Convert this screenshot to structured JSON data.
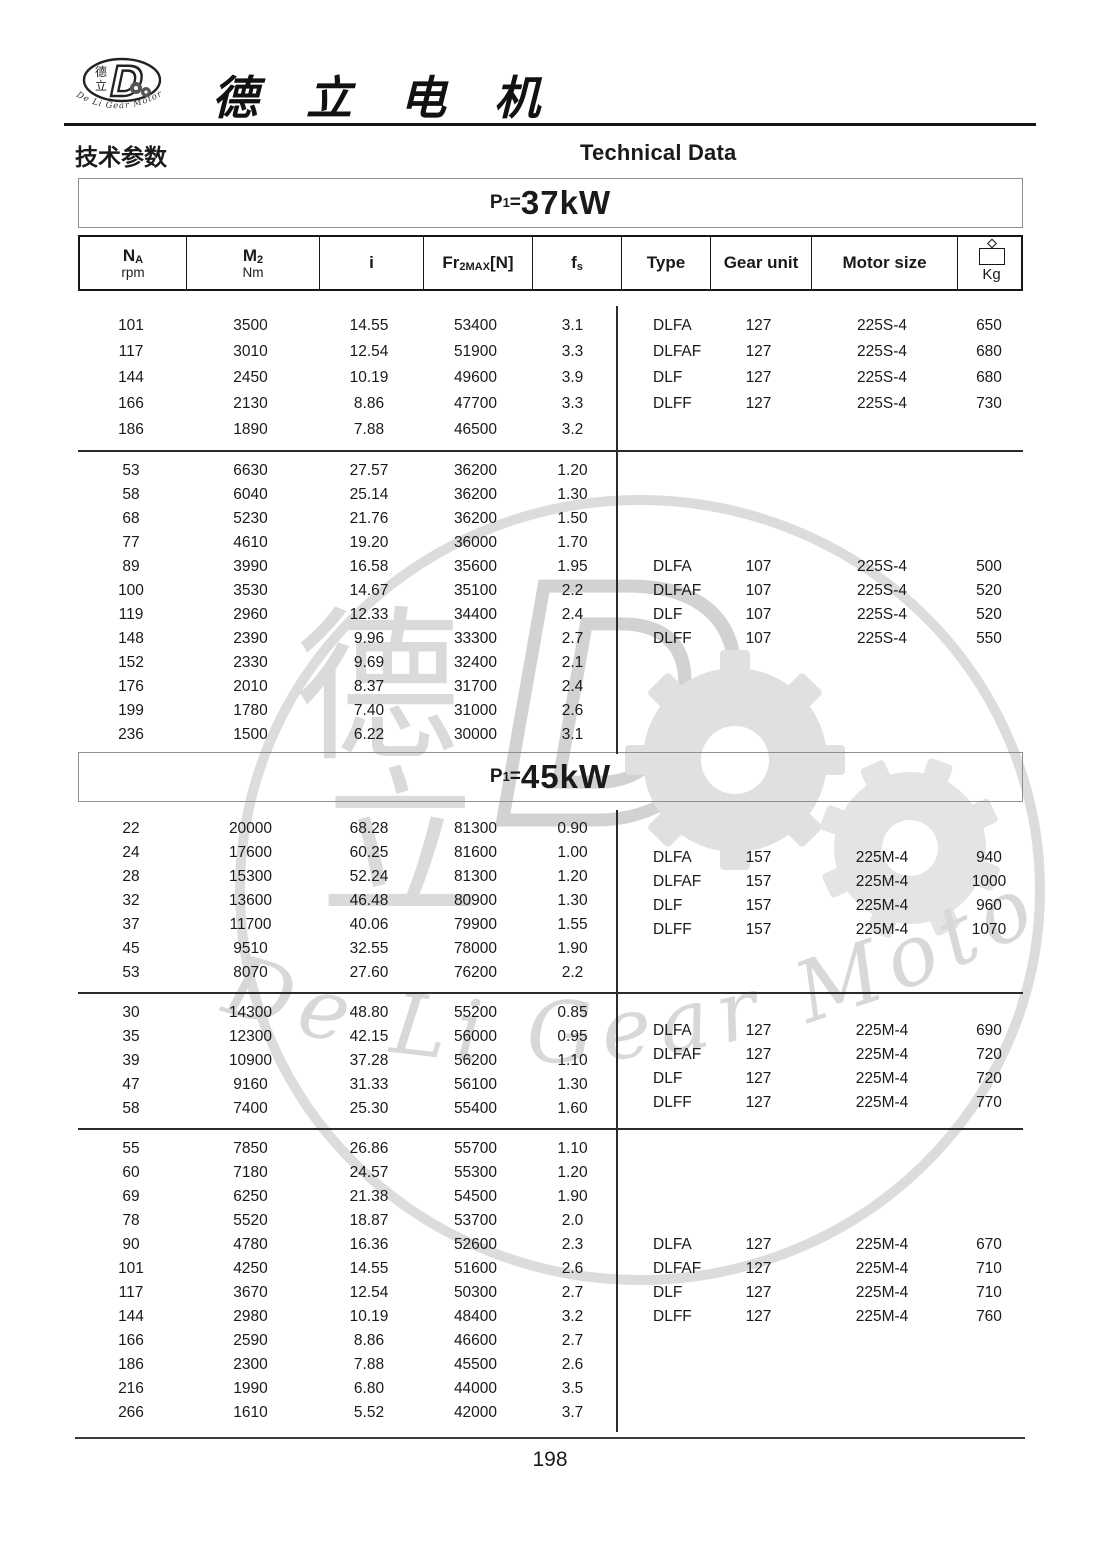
{
  "header": {
    "brand": "德 立 电 机",
    "section_cn": "技术参数",
    "section_en": "Technical Data"
  },
  "logo": {
    "char_top": "德",
    "char_bottom": "立",
    "monogram": "D",
    "ring_text": "De Li Gear Motor"
  },
  "watermark": {
    "char_top": "德",
    "char_bottom": "立",
    "monogram": "D",
    "script_text": "De Li Gear Motor"
  },
  "table": {
    "columns": [
      {
        "key": "na",
        "main": "N",
        "sub": "A",
        "unit": "rpm"
      },
      {
        "key": "m2",
        "main": "M",
        "sub": "2",
        "unit": "Nm"
      },
      {
        "key": "i",
        "main": "i"
      },
      {
        "key": "fr2max",
        "main": "Fr",
        "sub": "2MAX",
        "tail": "[N]"
      },
      {
        "key": "fs",
        "main": "f",
        "sub": "s"
      },
      {
        "key": "type",
        "main": "Type"
      },
      {
        "key": "gear-unit",
        "main": "Gear unit"
      },
      {
        "key": "motor-size",
        "main": "Motor size"
      },
      {
        "key": "kg",
        "icon": "weight-icon",
        "label": "Kg"
      }
    ]
  },
  "sections": [
    {
      "power": {
        "p": "P",
        "sub": "1",
        "eq": "=",
        "value": "37kW"
      },
      "blocks": [
        {
          "rows": [
            [
              "101",
              "3500",
              "14.55",
              "53400",
              "3.1"
            ],
            [
              "117",
              "3010",
              "12.54",
              "51900",
              "3.3"
            ],
            [
              "144",
              "2450",
              "10.19",
              "49600",
              "3.9"
            ],
            [
              "166",
              "2130",
              "8.86",
              "47700",
              "3.3"
            ],
            [
              "186",
              "1890",
              "7.88",
              "46500",
              "3.2"
            ]
          ],
          "types": [
            [
              "DLFA",
              "127",
              "225S-4",
              "650"
            ],
            [
              "DLFAF",
              "127",
              "225S-4",
              "680"
            ],
            [
              "DLF",
              "127",
              "225S-4",
              "680"
            ],
            [
              "DLFF",
              "127",
              "225S-4",
              "730"
            ]
          ]
        },
        {
          "rows": [
            [
              "53",
              "6630",
              "27.57",
              "36200",
              "1.20"
            ],
            [
              "58",
              "6040",
              "25.14",
              "36200",
              "1.30"
            ],
            [
              "68",
              "5230",
              "21.76",
              "36200",
              "1.50"
            ],
            [
              "77",
              "4610",
              "19.20",
              "36000",
              "1.70"
            ],
            [
              "89",
              "3990",
              "16.58",
              "35600",
              "1.95"
            ],
            [
              "100",
              "3530",
              "14.67",
              "35100",
              "2.2"
            ],
            [
              "119",
              "2960",
              "12.33",
              "34400",
              "2.4"
            ],
            [
              "148",
              "2390",
              "9.96",
              "33300",
              "2.7"
            ],
            [
              "152",
              "2330",
              "9.69",
              "32400",
              "2.1"
            ],
            [
              "176",
              "2010",
              "8.37",
              "31700",
              "2.4"
            ],
            [
              "199",
              "1780",
              "7.40",
              "31000",
              "2.6"
            ],
            [
              "236",
              "1500",
              "6.22",
              "30000",
              "3.1"
            ]
          ],
          "types": [
            [
              "DLFA",
              "107",
              "225S-4",
              "500"
            ],
            [
              "DLFAF",
              "107",
              "225S-4",
              "520"
            ],
            [
              "DLF",
              "107",
              "225S-4",
              "520"
            ],
            [
              "DLFF",
              "107",
              "225S-4",
              "550"
            ]
          ]
        }
      ]
    },
    {
      "power": {
        "p": "P",
        "sub": "1",
        "eq": "=",
        "value": "45kW"
      },
      "blocks": [
        {
          "rows": [
            [
              "22",
              "20000",
              "68.28",
              "81300",
              "0.90"
            ],
            [
              "24",
              "17600",
              "60.25",
              "81600",
              "1.00"
            ],
            [
              "28",
              "15300",
              "52.24",
              "81300",
              "1.20"
            ],
            [
              "32",
              "13600",
              "46.48",
              "80900",
              "1.30"
            ],
            [
              "37",
              "11700",
              "40.06",
              "79900",
              "1.55"
            ],
            [
              "45",
              "9510",
              "32.55",
              "78000",
              "1.90"
            ],
            [
              "53",
              "8070",
              "27.60",
              "76200",
              "2.2"
            ]
          ],
          "types": [
            [
              "DLFA",
              "157",
              "225M-4",
              "940"
            ],
            [
              "DLFAF",
              "157",
              "225M-4",
              "1000"
            ],
            [
              "DLF",
              "157",
              "225M-4",
              "960"
            ],
            [
              "DLFF",
              "157",
              "225M-4",
              "1070"
            ]
          ]
        },
        {
          "rows": [
            [
              "30",
              "14300",
              "48.80",
              "55200",
              "0.85"
            ],
            [
              "35",
              "12300",
              "42.15",
              "56000",
              "0.95"
            ],
            [
              "39",
              "10900",
              "37.28",
              "56200",
              "1.10"
            ],
            [
              "47",
              "9160",
              "31.33",
              "56100",
              "1.30"
            ],
            [
              "58",
              "7400",
              "25.30",
              "55400",
              "1.60"
            ]
          ],
          "types": [
            [
              "DLFA",
              "127",
              "225M-4",
              "690"
            ],
            [
              "DLFAF",
              "127",
              "225M-4",
              "720"
            ],
            [
              "DLF",
              "127",
              "225M-4",
              "720"
            ],
            [
              "DLFF",
              "127",
              "225M-4",
              "770"
            ]
          ]
        },
        {
          "rows": [
            [
              "55",
              "7850",
              "26.86",
              "55700",
              "1.10"
            ],
            [
              "60",
              "7180",
              "24.57",
              "55300",
              "1.20"
            ],
            [
              "69",
              "6250",
              "21.38",
              "54500",
              "1.90"
            ],
            [
              "78",
              "5520",
              "18.87",
              "53700",
              "2.0"
            ],
            [
              "90",
              "4780",
              "16.36",
              "52600",
              "2.3"
            ],
            [
              "101",
              "4250",
              "14.55",
              "51600",
              "2.6"
            ],
            [
              "117",
              "3670",
              "12.54",
              "50300",
              "2.7"
            ],
            [
              "144",
              "2980",
              "10.19",
              "48400",
              "3.2"
            ],
            [
              "166",
              "2590",
              "8.86",
              "46600",
              "2.7"
            ],
            [
              "186",
              "2300",
              "7.88",
              "45500",
              "2.6"
            ],
            [
              "216",
              "1990",
              "6.80",
              "44000",
              "3.5"
            ],
            [
              "266",
              "1610",
              "5.52",
              "42000",
              "3.7"
            ]
          ],
          "types": [
            [
              "DLFA",
              "127",
              "225M-4",
              "670"
            ],
            [
              "DLFAF",
              "127",
              "225M-4",
              "710"
            ],
            [
              "DLF",
              "127",
              "225M-4",
              "710"
            ],
            [
              "DLFF",
              "127",
              "225M-4",
              "760"
            ]
          ]
        }
      ]
    }
  ],
  "footer": {
    "page": "198"
  }
}
